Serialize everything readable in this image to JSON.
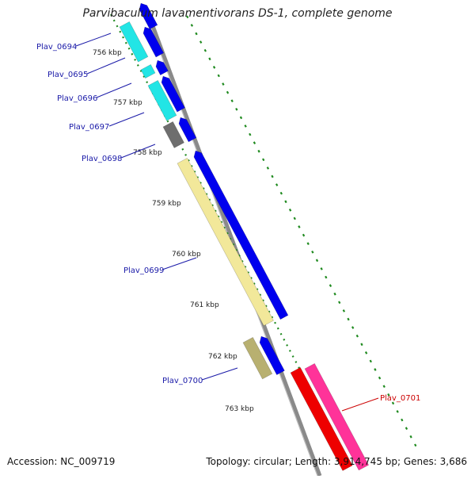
{
  "title": "Parvibaculum lavamentivorans DS-1, complete genome",
  "footer": {
    "accession": "Accession: NC_009719",
    "topology": "Topology: circular; Length: 3,914,745 bp; Genes: 3,686"
  },
  "colors": {
    "backbone": "#8a8a8a",
    "cds_forward": "#0000ee",
    "tick": "#1f8a1f",
    "gene_label": "#1a1aa8",
    "gene_label_reverse": "#cc0000",
    "cyan_gene": "#22e5e5",
    "gray_gene": "#6e6e6e",
    "light_yellow_gene": "#f2e89a",
    "olive_gene": "#b8b070",
    "red_gene": "#ee0000",
    "pink_gene": "#ff3399"
  },
  "ruler": [
    {
      "label": "756 kbp"
    },
    {
      "label": "757 kbp"
    },
    {
      "label": "758 kbp"
    },
    {
      "label": "759 kbp"
    },
    {
      "label": "760 kbp"
    },
    {
      "label": "761 kbp"
    },
    {
      "label": "762 kbp"
    },
    {
      "label": "763 kbp"
    }
  ],
  "genes": [
    {
      "name": "Plav_0694",
      "strand": "forward",
      "color": "cyan_gene"
    },
    {
      "name": "Plav_0695",
      "strand": "forward",
      "color": "cyan_gene"
    },
    {
      "name": "Plav_0696",
      "strand": "forward",
      "color": "cyan_gene"
    },
    {
      "name": "Plav_0697",
      "strand": "forward",
      "color": "gray_gene"
    },
    {
      "name": "Plav_0698",
      "strand": "forward",
      "color": "gray_gene"
    },
    {
      "name": "Plav_0699",
      "strand": "forward",
      "color": "light_yellow_gene"
    },
    {
      "name": "Plav_0700",
      "strand": "forward",
      "color": "olive_gene"
    },
    {
      "name": "Plav_0701",
      "strand": "reverse",
      "color": "pink_gene"
    }
  ]
}
